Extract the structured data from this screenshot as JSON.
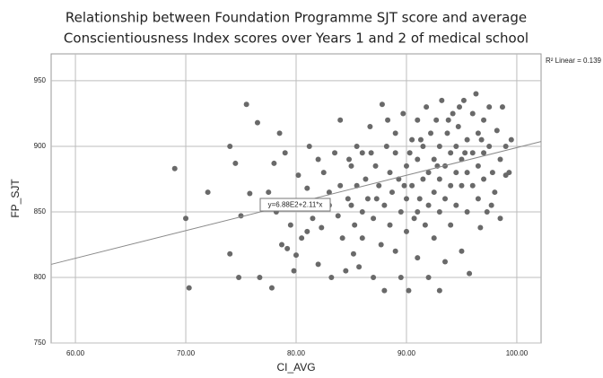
{
  "chart_data": {
    "type": "scatter",
    "title": "Relationship between Foundation Programme SJT score and average",
    "subtitle": "Conscientiousness Index scores over Years 1 and 2 of medical school",
    "x_label": "CI_AVG",
    "y_label": "FP_SJT",
    "annotation": "y=6.88E2+2.11*x",
    "r2_label": "R² Linear = 0.139",
    "trendline": {
      "intercept": 688,
      "slope": 2.11
    },
    "color": "#696969",
    "grid": true,
    "xlim": [
      57.8,
      102.2
    ],
    "ylim": [
      750,
      970.5
    ],
    "xticks": [
      {
        "value": 60,
        "label": "60.00"
      },
      {
        "value": 70,
        "label": "70.00"
      },
      {
        "value": 80,
        "label": "80.00"
      },
      {
        "value": 90,
        "label": "90.00"
      },
      {
        "value": 100,
        "label": "100.00"
      }
    ],
    "yticks": [
      750,
      800,
      850,
      900,
      950
    ],
    "x": [
      69,
      70,
      70.3,
      72,
      74,
      74.5,
      74,
      74.8,
      75.5,
      75,
      75.8,
      76.5,
      76.7,
      77,
      77.5,
      77.8,
      78,
      78.5,
      78.7,
      79,
      79.2,
      79.5,
      79.8,
      80,
      80.2,
      80.5,
      81,
      81.2,
      81.5,
      82,
      82.3,
      82.5,
      83,
      83.2,
      83.5,
      83.8,
      84,
      84.2,
      84.5,
      84.7,
      85,
      85,
      85.3,
      85.5,
      85.7,
      86,
      86,
      86.3,
      86.5,
      86.7,
      87,
      87,
      87.2,
      87.5,
      87.7,
      87.8,
      88,
      88,
      88.2,
      88.5,
      88.5,
      88.7,
      89,
      89,
      89,
      89.3,
      89.5,
      89.5,
      89.7,
      90,
      90,
      90,
      90.2,
      90.5,
      90.5,
      90.7,
      91,
      91,
      91,
      91.2,
      91.5,
      91.5,
      91.7,
      91.8,
      92,
      92,
      92,
      92.2,
      92.5,
      92.5,
      92.5,
      92.7,
      93,
      93,
      93,
      93,
      93.2,
      93.5,
      93.5,
      93.5,
      93.7,
      94,
      94,
      94,
      94.2,
      94.5,
      94.5,
      94.5,
      94.7,
      95,
      95,
      95,
      95.2,
      95.5,
      95.5,
      95.5,
      95.7,
      96,
      96,
      96,
      96.3,
      96.5,
      96.5,
      96.5,
      96.7,
      97,
      97,
      97,
      97.3,
      97.5,
      97.5,
      97.8,
      98,
      98.2,
      98.5,
      98.7,
      99,
      99,
      99.5,
      99.3,
      86,
      84,
      85.5,
      83,
      82,
      81,
      80.5,
      78.2,
      86.8,
      88.3,
      90.3,
      91.3,
      92.8,
      93.8,
      95.3,
      96.8,
      94.8,
      97.7,
      98.5,
      91,
      89.8,
      87.3,
      84.8,
      85.2
    ],
    "values": [
      883,
      845,
      792,
      865,
      900,
      887,
      818,
      800,
      932,
      847,
      864,
      918,
      800,
      857,
      865,
      792,
      887,
      910,
      825,
      895,
      822,
      840,
      805,
      817,
      878,
      830,
      868,
      900,
      845,
      810,
      838,
      880,
      865,
      800,
      895,
      847,
      920,
      830,
      805,
      860,
      885,
      855,
      840,
      870,
      808,
      895,
      830,
      875,
      860,
      915,
      845,
      800,
      885,
      870,
      825,
      932,
      855,
      790,
      900,
      880,
      840,
      865,
      910,
      820,
      895,
      875,
      850,
      800,
      925,
      885,
      860,
      835,
      790,
      905,
      870,
      845,
      920,
      890,
      815,
      860,
      900,
      875,
      840,
      930,
      880,
      855,
      800,
      910,
      890,
      865,
      830,
      920,
      900,
      875,
      850,
      790,
      935,
      885,
      860,
      812,
      910,
      895,
      870,
      840,
      925,
      880,
      900,
      855,
      915,
      890,
      870,
      820,
      935,
      905,
      880,
      850,
      803,
      925,
      895,
      870,
      940,
      910,
      885,
      860,
      838,
      920,
      895,
      875,
      850,
      930,
      900,
      880,
      865,
      912,
      890,
      930,
      900,
      878,
      905,
      880,
      850,
      870,
      900,
      855,
      890,
      835,
      855,
      850,
      895,
      920,
      895,
      905,
      885,
      920,
      895,
      905,
      930,
      855,
      845,
      850,
      870,
      860,
      890,
      818
    ]
  }
}
